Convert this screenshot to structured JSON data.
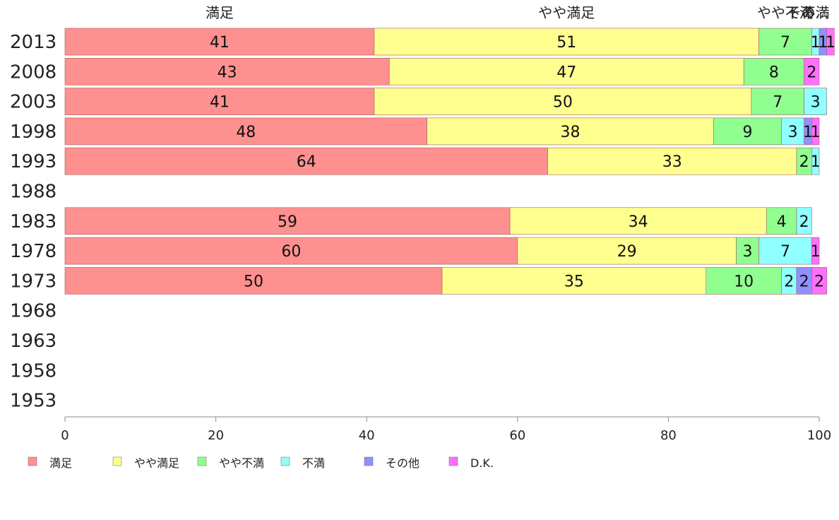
{
  "chart_data": {
    "type": "bar",
    "orientation": "horizontal",
    "stacked": true,
    "categories": [
      "2013",
      "2008",
      "2003",
      "1998",
      "1993",
      "1988",
      "1983",
      "1978",
      "1973",
      "1968",
      "1963",
      "1958",
      "1953"
    ],
    "series": [
      {
        "name": "満足",
        "color": "#ff9090",
        "values": [
          41,
          43,
          41,
          48,
          64,
          null,
          59,
          60,
          50,
          null,
          null,
          null,
          null
        ]
      },
      {
        "name": "やや満足",
        "color": "#ffff90",
        "values": [
          51,
          47,
          50,
          38,
          33,
          null,
          34,
          29,
          35,
          null,
          null,
          null,
          null
        ]
      },
      {
        "name": "やや不満",
        "color": "#90ff90",
        "values": [
          7,
          8,
          7,
          9,
          2,
          null,
          4,
          3,
          10,
          null,
          null,
          null,
          null
        ]
      },
      {
        "name": "不満",
        "color": "#90ffff",
        "values": [
          1,
          0,
          3,
          3,
          1,
          null,
          2,
          7,
          2,
          null,
          null,
          null,
          null
        ]
      },
      {
        "name": "その他",
        "color": "#9090ff",
        "values": [
          1,
          0,
          0,
          1,
          0,
          null,
          0,
          0,
          2,
          null,
          null,
          null,
          null
        ]
      },
      {
        "name": "D.K.",
        "color": "#ff70ff",
        "values": [
          1,
          2,
          0,
          1,
          0,
          null,
          0,
          1,
          2,
          null,
          null,
          null,
          null
        ]
      }
    ],
    "header_labels": [
      "満足",
      "やや満足",
      "やや不満",
      "不満",
      "その..."
    ],
    "x_ticks": [
      0,
      20,
      40,
      60,
      80,
      100
    ],
    "xlim": [
      0,
      100
    ],
    "legend_position": "bottom",
    "grid": false
  }
}
